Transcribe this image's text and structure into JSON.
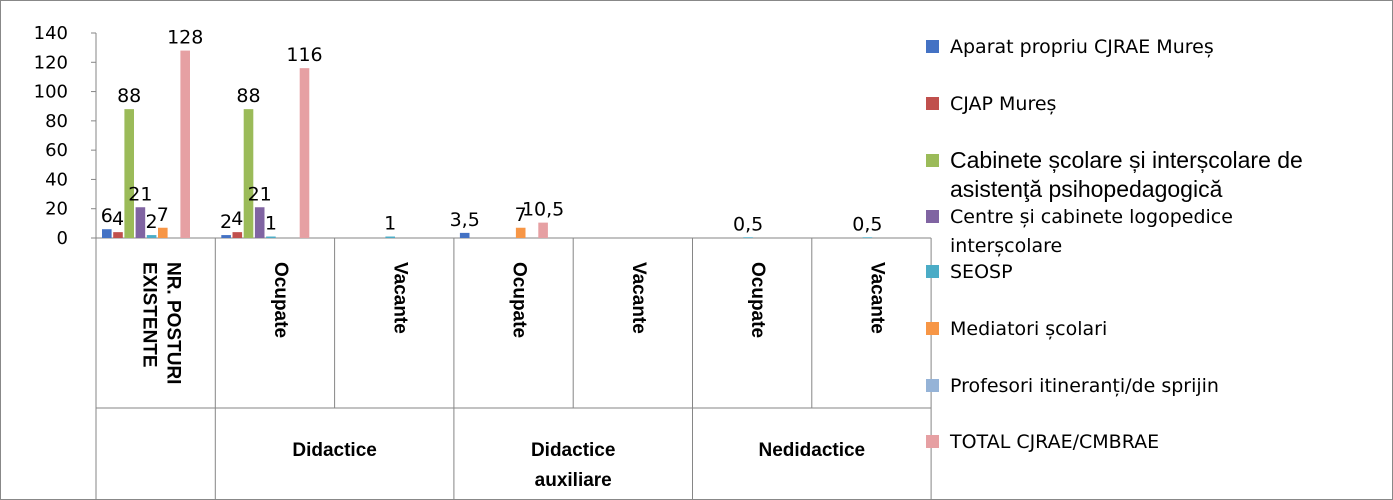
{
  "chart_data": {
    "type": "bar",
    "title": "",
    "xlabel": "",
    "ylabel": "",
    "ylim": [
      0,
      140
    ],
    "yticks": [
      "0",
      "20",
      "40",
      "60",
      "80",
      "100",
      "120",
      "140"
    ],
    "grid": false,
    "legend_position": "right",
    "categories": [
      {
        "label": "NR. POSTURI EXISTENTE",
        "lines": [
          "NR. POSTURI",
          "EXISTENTE"
        ]
      },
      {
        "label": "Ocupate",
        "lines": [
          "Ocupate"
        ]
      },
      {
        "label": "Vacante",
        "lines": [
          "Vacante"
        ]
      },
      {
        "label": "Ocupate",
        "lines": [
          "Ocupate"
        ]
      },
      {
        "label": "Vacante",
        "lines": [
          "Vacante"
        ]
      },
      {
        "label": "Ocupate",
        "lines": [
          "Ocupate"
        ]
      },
      {
        "label": "Vacante",
        "lines": [
          "Vacante"
        ]
      }
    ],
    "groups": [
      {
        "label": "",
        "lines": [],
        "span": [
          0,
          0
        ]
      },
      {
        "label": "Didactice",
        "lines": [
          "Didactice"
        ],
        "span": [
          1,
          2
        ]
      },
      {
        "label": "Didactice auxiliare",
        "lines": [
          "Didactice",
          "auxiliare"
        ],
        "span": [
          3,
          4
        ]
      },
      {
        "label": "Nedidactice",
        "lines": [
          "Nedidactice"
        ],
        "span": [
          5,
          6
        ]
      }
    ],
    "series": [
      {
        "name": "Aparat propriu CJRAE Mureș",
        "legend_lines": [
          "Aparat propriu CJRAE Mureș"
        ],
        "color": "#4472C4",
        "values": [
          6,
          2,
          null,
          3.5,
          null,
          null,
          null
        ],
        "labels": [
          "6",
          "2",
          "",
          "3,5",
          "",
          "",
          ""
        ]
      },
      {
        "name": "CJAP Mureș",
        "legend_lines": [
          "CJAP Mureș"
        ],
        "color": "#C0504D",
        "values": [
          4,
          4,
          null,
          null,
          null,
          null,
          null
        ],
        "labels": [
          "4",
          "4",
          "",
          "",
          "",
          "",
          ""
        ]
      },
      {
        "name": "Cabinete școlare și interșcolare de asistenţă psihopedagogică",
        "legend_lines": [
          "Cabinete școlare și interșcolare de",
          "asistenţă psihopedagogică"
        ],
        "legend_style": "big",
        "color": "#9BBB59",
        "values": [
          88,
          88,
          null,
          null,
          null,
          null,
          null
        ],
        "labels": [
          "88",
          "88",
          "",
          "",
          "",
          "",
          ""
        ]
      },
      {
        "name": "Centre și cabinete logopedice interșcolare",
        "legend_lines": [
          "Centre și cabinete logopedice",
          "interșcolare"
        ],
        "color": "#8064A2",
        "values": [
          21,
          21,
          null,
          null,
          null,
          null,
          null
        ],
        "labels": [
          "21",
          "21",
          "",
          "",
          "",
          "",
          ""
        ]
      },
      {
        "name": "SEOSP",
        "legend_lines": [
          "SEOSP"
        ],
        "color": "#4BACC6",
        "values": [
          2,
          1,
          1,
          null,
          null,
          0.5,
          0.5
        ],
        "labels": [
          "2",
          "1",
          "1",
          "",
          "",
          "0,5",
          "0,5"
        ]
      },
      {
        "name": "Mediatori școlari",
        "legend_lines": [
          "Mediatori școlari"
        ],
        "color": "#F79646",
        "values": [
          7,
          null,
          null,
          7,
          null,
          null,
          null
        ],
        "labels": [
          "7",
          "",
          "",
          "7",
          "",
          "",
          ""
        ]
      },
      {
        "name": "Profesori itineranți/de sprijin",
        "legend_lines": [
          "Profesori itineranți/de sprijin"
        ],
        "color": "#95B3D7",
        "values": [
          null,
          null,
          null,
          null,
          null,
          null,
          null
        ],
        "labels": [
          "",
          "",
          "",
          "",
          "",
          "",
          ""
        ]
      },
      {
        "name": "TOTAL CJRAE/CMBRAE",
        "legend_lines": [
          "TOTAL CJRAE/CMBRAE"
        ],
        "color": "#E6A0A3",
        "values": [
          128,
          116,
          null,
          10.5,
          null,
          null,
          null
        ],
        "labels": [
          "128",
          "116",
          "",
          "10,5",
          "",
          "",
          ""
        ]
      }
    ]
  }
}
